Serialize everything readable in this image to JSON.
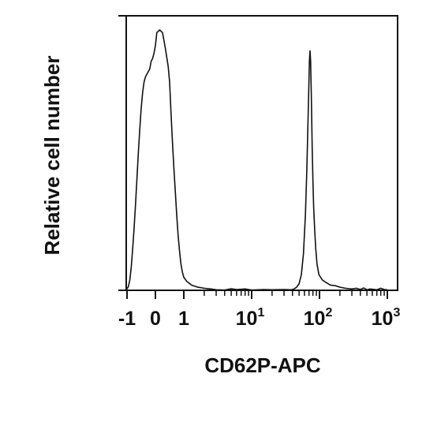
{
  "chart_data": {
    "type": "area",
    "title": "",
    "xlabel": "CD62P-APC",
    "ylabel": "Relative cell number",
    "x_scale": "biexponential",
    "xlim": [
      -1,
      1000
    ],
    "ylim": [
      0,
      100
    ],
    "grid": false,
    "legend": "none",
    "x_tick_labels": [
      {
        "value": -1,
        "label": "-1"
      },
      {
        "value": 0,
        "label": "0"
      },
      {
        "value": 1,
        "label": "1"
      },
      {
        "value": 10,
        "label": "10",
        "sup": "1"
      },
      {
        "value": 100,
        "label": "10",
        "sup": "2"
      },
      {
        "value": 1000,
        "label": "10",
        "sup": "3"
      }
    ],
    "x_minor_ticks": [
      2,
      3,
      4,
      5,
      6,
      7,
      8,
      9,
      20,
      30,
      40,
      50,
      60,
      70,
      80,
      90,
      200,
      300,
      400,
      500,
      600,
      700,
      800,
      900
    ],
    "series": [
      {
        "points": [
          [
            -1,
            0.5
          ],
          [
            -0.95,
            1.5
          ],
          [
            -0.9,
            4
          ],
          [
            -0.85,
            9
          ],
          [
            -0.8,
            16
          ],
          [
            -0.75,
            24
          ],
          [
            -0.7,
            33
          ],
          [
            -0.65,
            43
          ],
          [
            -0.6,
            53
          ],
          [
            -0.55,
            62
          ],
          [
            -0.5,
            70
          ],
          [
            -0.45,
            76
          ],
          [
            -0.4,
            80
          ],
          [
            -0.35,
            82
          ],
          [
            -0.3,
            83
          ],
          [
            -0.25,
            84
          ],
          [
            -0.2,
            85
          ],
          [
            -0.15,
            88
          ],
          [
            -0.1,
            89
          ],
          [
            -0.05,
            91
          ],
          [
            0.0,
            94
          ],
          [
            0.05,
            99
          ],
          [
            0.15,
            100
          ],
          [
            0.25,
            99
          ],
          [
            0.35,
            93
          ],
          [
            0.45,
            86
          ],
          [
            0.5,
            80
          ],
          [
            0.55,
            68
          ],
          [
            0.6,
            57
          ],
          [
            0.65,
            47
          ],
          [
            0.7,
            38
          ],
          [
            0.75,
            29
          ],
          [
            0.8,
            21
          ],
          [
            0.85,
            15
          ],
          [
            0.9,
            10
          ],
          [
            0.95,
            7
          ],
          [
            1.0,
            5
          ],
          [
            1.1,
            3.5
          ],
          [
            1.3,
            2
          ],
          [
            1.6,
            1.2
          ],
          [
            2.0,
            0.8
          ],
          [
            2.5,
            0.5
          ],
          [
            3,
            0.2
          ],
          [
            4,
            0.1
          ],
          [
            5,
            0.6
          ],
          [
            6,
            0.3
          ],
          [
            8,
            0.5
          ],
          [
            10,
            0.1
          ],
          [
            15,
            0.3
          ],
          [
            20,
            0.2
          ],
          [
            30,
            0.3
          ],
          [
            38,
            0.2
          ],
          [
            42,
            0.5
          ],
          [
            46,
            1.2
          ],
          [
            50,
            2.5
          ],
          [
            54,
            6
          ],
          [
            58,
            14
          ],
          [
            62,
            29
          ],
          [
            65,
            46
          ],
          [
            67,
            60
          ],
          [
            69,
            74
          ],
          [
            71,
            88
          ],
          [
            72.5,
            92
          ],
          [
            74,
            88
          ],
          [
            76,
            73
          ],
          [
            78,
            55
          ],
          [
            80,
            42
          ],
          [
            82,
            32
          ],
          [
            85,
            23
          ],
          [
            88,
            16
          ],
          [
            92,
            10
          ],
          [
            98,
            6
          ],
          [
            110,
            4
          ],
          [
            125,
            3
          ],
          [
            145,
            2
          ],
          [
            170,
            1.8
          ],
          [
            200,
            1.2
          ],
          [
            240,
            0.8
          ],
          [
            300,
            0.5
          ],
          [
            350,
            0.8
          ],
          [
            400,
            0.3
          ],
          [
            450,
            0.9
          ],
          [
            500,
            0.2
          ],
          [
            550,
            0.5
          ],
          [
            600,
            0.4
          ],
          [
            700,
            0.2
          ],
          [
            800,
            0.8
          ],
          [
            900,
            0.3
          ],
          [
            1000,
            0.2
          ]
        ]
      }
    ]
  }
}
